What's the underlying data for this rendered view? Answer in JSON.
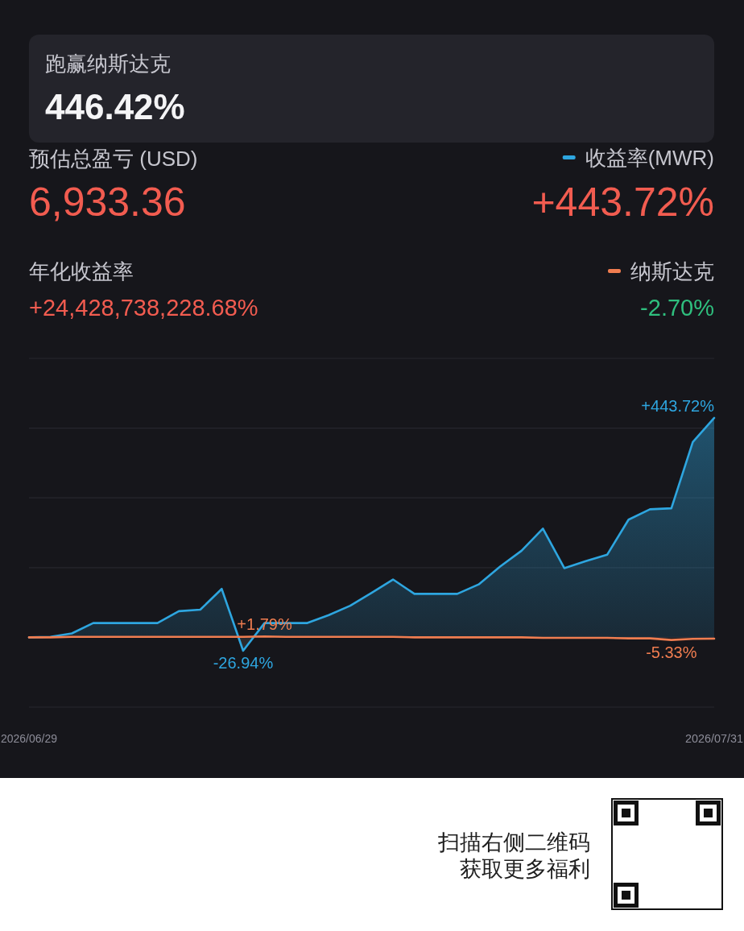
{
  "chart_data": {
    "type": "area",
    "title": "跑赢纳斯达克",
    "subtitle": "446.42%",
    "annotations": [
      "预估总盈亏 (USD)",
      "6,933.36",
      "+443.72%",
      "年化收益率",
      "+24,428,738,228.68%",
      "-2.70%",
      "扫描右侧二维码",
      "获取更多福利"
    ],
    "x": [
      "2026-06-29",
      "2026-06-30",
      "2026-07-01",
      "2026-07-02",
      "2026-07-03",
      "2026-07-04",
      "2026-07-05",
      "2026-07-06",
      "2026-07-07",
      "2026-07-08",
      "2026-07-09",
      "2026-07-10",
      "2026-07-11",
      "2026-07-12",
      "2026-07-13",
      "2026-07-14",
      "2026-07-15",
      "2026-07-16",
      "2026-07-17",
      "2026-07-18",
      "2026-07-19",
      "2026-07-20",
      "2026-07-21",
      "2026-07-22",
      "2026-07-23",
      "2026-07-24",
      "2026-07-25",
      "2026-07-26",
      "2026-07-27",
      "2026-07-28",
      "2026-07-29",
      "2026-07-30",
      "2026-07-31"
    ],
    "xlim": [
      "2026-06-29",
      "2026-07-31"
    ],
    "xticks": [
      {
        "value": "2026-06-29",
        "label": "2026/06/29"
      },
      {
        "value": "2026-07-31",
        "label": "2026/07/31"
      }
    ],
    "ylim": [
      -141,
      564
    ],
    "yticks": [
      {
        "value": -141,
        "label": null
      },
      {
        "value": 0,
        "label": null
      },
      {
        "value": 141,
        "label": null
      },
      {
        "value": 282,
        "label": null
      },
      {
        "value": 423,
        "label": null
      },
      {
        "value": 564,
        "label": null
      }
    ],
    "tick_labels": "x",
    "grid": "y",
    "legend": "top right",
    "series": [
      {
        "name": "收益率(MWR)",
        "color": "#2ea6e0",
        "values": [
          0,
          1,
          8,
          29,
          29,
          29,
          29,
          53,
          56,
          98,
          -26.94,
          29,
          29,
          29,
          45,
          64,
          90,
          117,
          88,
          88,
          88,
          107,
          143,
          175,
          220,
          140,
          154,
          167,
          238,
          259,
          261,
          395,
          443.72
        ],
        "value_labels": [
          null,
          null,
          null,
          null,
          null,
          null,
          null,
          null,
          null,
          null,
          "-26.94%",
          null,
          null,
          null,
          null,
          null,
          null,
          null,
          null,
          null,
          null,
          null,
          null,
          null,
          null,
          null,
          null,
          null,
          null,
          null,
          null,
          null,
          "+443.72%"
        ]
      },
      {
        "name": "纳斯达克",
        "type": "line",
        "color": "#f07d50",
        "values": [
          0,
          0,
          1,
          1,
          1,
          1,
          1,
          1,
          1,
          1,
          1,
          1.79,
          1,
          1,
          1,
          1,
          1,
          1,
          0,
          0,
          0,
          0,
          0,
          0,
          -1,
          -1,
          -1,
          -1,
          -2,
          -2,
          -5.33,
          -3,
          -2.7
        ],
        "value_labels": [
          null,
          null,
          null,
          null,
          null,
          null,
          null,
          null,
          null,
          null,
          null,
          "+1.79%",
          null,
          null,
          null,
          null,
          null,
          null,
          null,
          null,
          null,
          null,
          null,
          null,
          null,
          null,
          null,
          null,
          null,
          null,
          "-5.33%",
          null,
          null
        ]
      }
    ]
  }
}
